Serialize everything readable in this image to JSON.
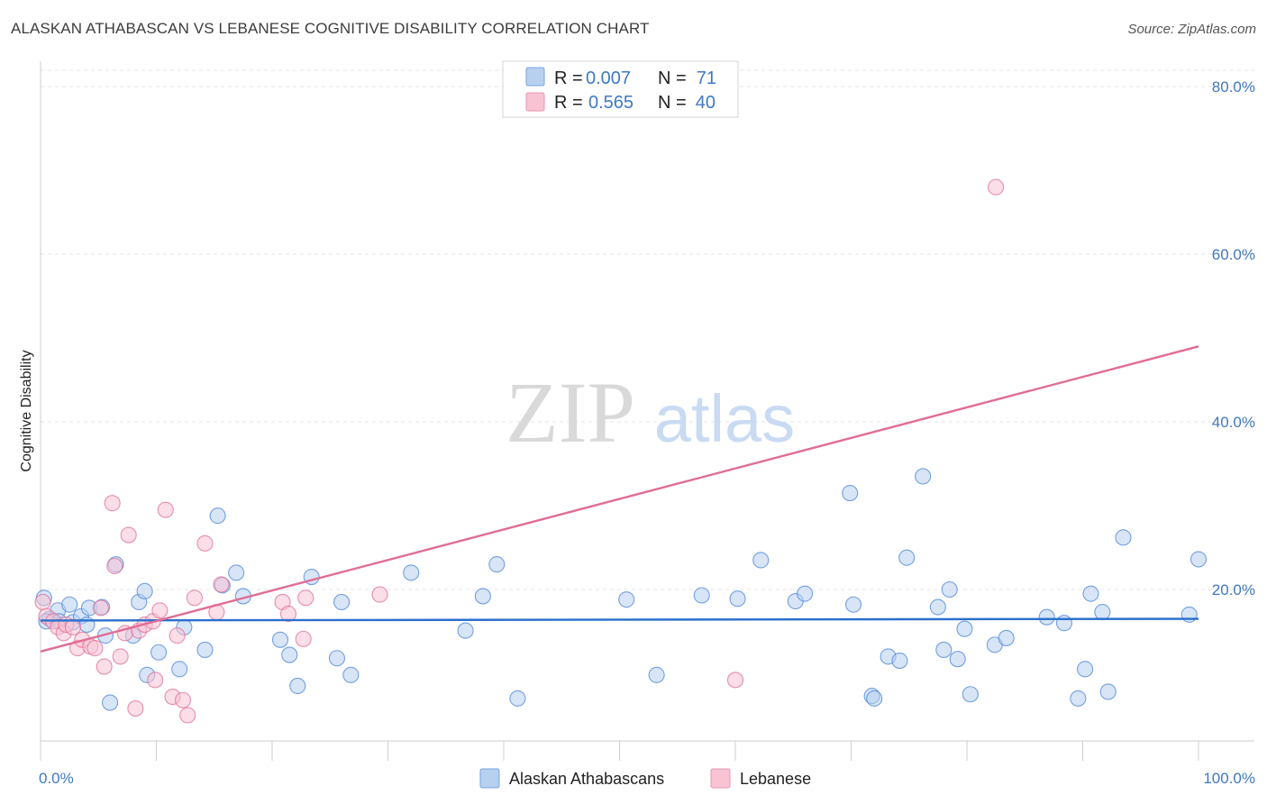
{
  "header": {
    "title": "ALASKAN ATHABASCAN VS LEBANESE COGNITIVE DISABILITY CORRELATION CHART",
    "source": "Source: ZipAtlas.com"
  },
  "watermark": {
    "zip": "ZIP",
    "atlas": "atlas"
  },
  "legend": {
    "rows": [
      {
        "r_label": "R =",
        "r_value": "0.007",
        "n_label": "N =",
        "n_value": "71"
      },
      {
        "r_label": "R =",
        "r_value": "0.565",
        "n_label": "N =",
        "n_value": "40"
      }
    ]
  },
  "chart_data": {
    "type": "scatter",
    "title": "ALASKAN ATHABASCAN VS LEBANESE COGNITIVE DISABILITY CORRELATION CHART",
    "ylabel": "Cognitive Disability",
    "xlim": [
      0,
      100
    ],
    "ylim": [
      0,
      82
    ],
    "x_tick_labels": [
      "0.0%",
      "100.0%"
    ],
    "y_ticks": [
      20,
      40,
      60,
      80
    ],
    "y_tick_labels": [
      "20.0%",
      "40.0%",
      "60.0%",
      "80.0%"
    ],
    "grid": true,
    "legend_position": "top-center",
    "series": [
      {
        "name": "Alaskan Athabascans",
        "color": "#4a84d8",
        "fill": "#b7d0f0",
        "R": 0.007,
        "N": 71,
        "trend": {
          "x": [
            0,
            100
          ],
          "y": [
            16.3,
            16.5
          ]
        },
        "points": [
          [
            0.3,
            19
          ],
          [
            0.8,
            16.5
          ],
          [
            1.5,
            17.5
          ],
          [
            1.6,
            16.2
          ],
          [
            2.5,
            18.2
          ],
          [
            2.8,
            16.1
          ],
          [
            3.5,
            16.8
          ],
          [
            4,
            15.8
          ],
          [
            4.2,
            17.8
          ],
          [
            5.3,
            17.9
          ],
          [
            5.6,
            14.5
          ],
          [
            6,
            6.5
          ],
          [
            6.5,
            23
          ],
          [
            8,
            14.5
          ],
          [
            8.5,
            18.5
          ],
          [
            9,
            19.8
          ],
          [
            9.2,
            9.8
          ],
          [
            10.2,
            12.5
          ],
          [
            12,
            10.5
          ],
          [
            12.4,
            15.5
          ],
          [
            14.2,
            12.8
          ],
          [
            15.3,
            28.8
          ],
          [
            15.7,
            20.5
          ],
          [
            16.9,
            22
          ],
          [
            17.5,
            19.2
          ],
          [
            20.7,
            14
          ],
          [
            21.5,
            12.2
          ],
          [
            22.2,
            8.5
          ],
          [
            23.4,
            21.5
          ],
          [
            25.6,
            11.8
          ],
          [
            26,
            18.5
          ],
          [
            26.8,
            9.8
          ],
          [
            32,
            22
          ],
          [
            36.7,
            15.1
          ],
          [
            38.2,
            19.2
          ],
          [
            39.4,
            23
          ],
          [
            41.2,
            7
          ],
          [
            50.6,
            18.8
          ],
          [
            53.2,
            9.8
          ],
          [
            57.1,
            19.3
          ],
          [
            60.2,
            18.9
          ],
          [
            62.2,
            23.5
          ],
          [
            65.2,
            18.6
          ],
          [
            66,
            19.5
          ],
          [
            69.9,
            31.5
          ],
          [
            70.2,
            18.2
          ],
          [
            71.8,
            7.3
          ],
          [
            72,
            7
          ],
          [
            73.2,
            12
          ],
          [
            74.2,
            11.5
          ],
          [
            74.8,
            23.8
          ],
          [
            76.2,
            33.5
          ],
          [
            77.5,
            17.9
          ],
          [
            78,
            12.8
          ],
          [
            78.5,
            20
          ],
          [
            79.2,
            11.7
          ],
          [
            79.8,
            15.3
          ],
          [
            80.3,
            7.5
          ],
          [
            82.4,
            13.4
          ],
          [
            83.4,
            14.2
          ],
          [
            86.9,
            16.7
          ],
          [
            88.4,
            16
          ],
          [
            89.6,
            7
          ],
          [
            90.2,
            10.5
          ],
          [
            90.7,
            19.5
          ],
          [
            91.7,
            17.3
          ],
          [
            92.2,
            7.8
          ],
          [
            93.5,
            26.2
          ],
          [
            99.2,
            17
          ],
          [
            100,
            23.6
          ],
          [
            0.5,
            16.2
          ]
        ]
      },
      {
        "name": "Lebanese",
        "color": "#e06d96",
        "fill": "#f8c3d3",
        "R": 0.565,
        "N": 40,
        "trend": {
          "x": [
            0,
            100
          ],
          "y": [
            12.6,
            49.0
          ]
        },
        "points": [
          [
            0.2,
            18.5
          ],
          [
            0.5,
            16.8
          ],
          [
            1.1,
            16.2
          ],
          [
            1.5,
            15.5
          ],
          [
            2,
            14.8
          ],
          [
            2.2,
            15.8
          ],
          [
            2.8,
            15.5
          ],
          [
            3.2,
            13
          ],
          [
            3.6,
            14
          ],
          [
            4.3,
            13.2
          ],
          [
            4.7,
            13
          ],
          [
            5.2,
            17.8
          ],
          [
            5.5,
            10.8
          ],
          [
            6.2,
            30.3
          ],
          [
            6.4,
            22.8
          ],
          [
            6.9,
            12
          ],
          [
            7.3,
            14.8
          ],
          [
            7.6,
            26.5
          ],
          [
            8.2,
            5.8
          ],
          [
            8.5,
            15.1
          ],
          [
            9,
            15.8
          ],
          [
            9.7,
            16.2
          ],
          [
            9.9,
            9.2
          ],
          [
            10.3,
            17.5
          ],
          [
            10.8,
            29.5
          ],
          [
            11.4,
            7.2
          ],
          [
            11.8,
            14.5
          ],
          [
            12.3,
            6.8
          ],
          [
            12.7,
            5
          ],
          [
            13.3,
            19
          ],
          [
            14.2,
            25.5
          ],
          [
            15.2,
            17.3
          ],
          [
            15.6,
            20.6
          ],
          [
            20.9,
            18.5
          ],
          [
            21.4,
            17.1
          ],
          [
            22.7,
            14.1
          ],
          [
            22.9,
            19
          ],
          [
            29.3,
            19.4
          ],
          [
            60,
            9.2
          ],
          [
            82.5,
            68
          ]
        ]
      }
    ]
  }
}
